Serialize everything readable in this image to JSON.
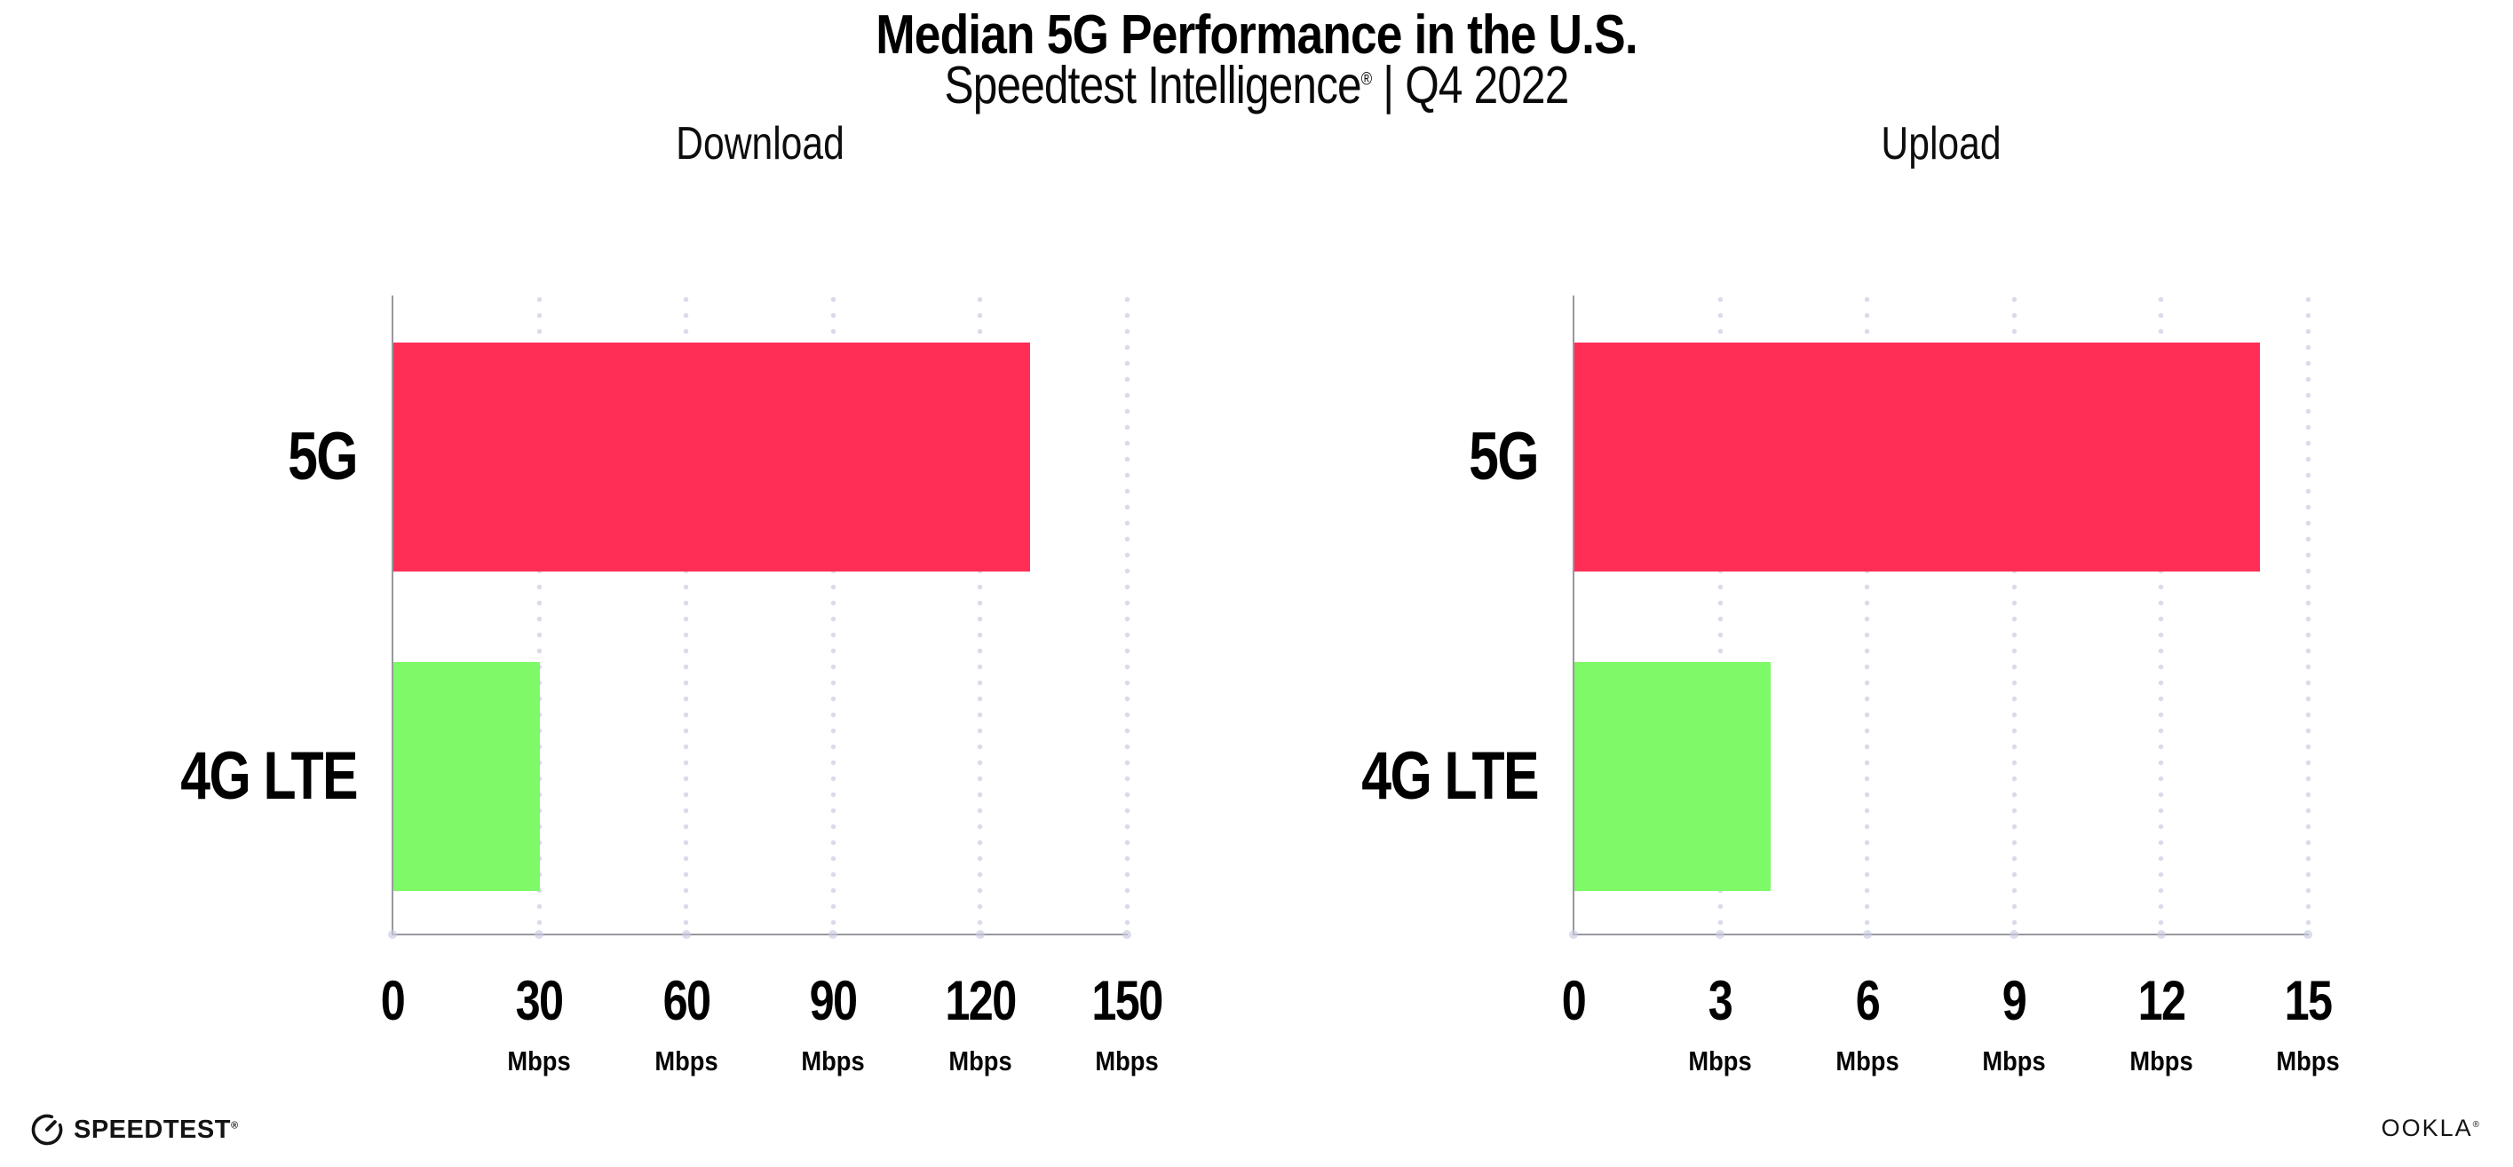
{
  "header": {
    "title": "Median 5G Performance in the U.S.",
    "subtitle_brand": "Speedtest Intelligence",
    "subtitle_reg": "®",
    "subtitle_separator": " | ",
    "subtitle_period": "Q4 2022"
  },
  "colors": {
    "bar_5g": "#FF2E56",
    "bar_4g_lte": "#7EF967",
    "axis": "#98989f",
    "grid_dot": "#d9dbe8",
    "text": "#000000"
  },
  "chart_data": [
    {
      "type": "bar",
      "orientation": "horizontal",
      "title": "Download",
      "categories": [
        "5G",
        "4G LTE"
      ],
      "values": [
        130,
        30
      ],
      "unit": "Mbps",
      "xlim": [
        0,
        150
      ],
      "xticks": [
        0,
        30,
        60,
        90,
        120,
        150
      ],
      "bar_colors": [
        "#FF2E56",
        "#7EF967"
      ],
      "grid": "dotted-vertical-at-ticks",
      "legend": "none"
    },
    {
      "type": "bar",
      "orientation": "horizontal",
      "title": "Upload",
      "categories": [
        "5G",
        "4G LTE"
      ],
      "values": [
        14,
        4
      ],
      "unit": "Mbps",
      "xlim": [
        0,
        15
      ],
      "xticks": [
        0,
        3,
        6,
        9,
        12,
        15
      ],
      "bar_colors": [
        "#FF2E56",
        "#7EF967"
      ],
      "grid": "dotted-vertical-at-ticks",
      "legend": "none"
    }
  ],
  "footer": {
    "speedtest_label": "SPEEDTEST",
    "speedtest_mark": "®",
    "ookla_label": "OOKLA",
    "ookla_mark": "®"
  }
}
